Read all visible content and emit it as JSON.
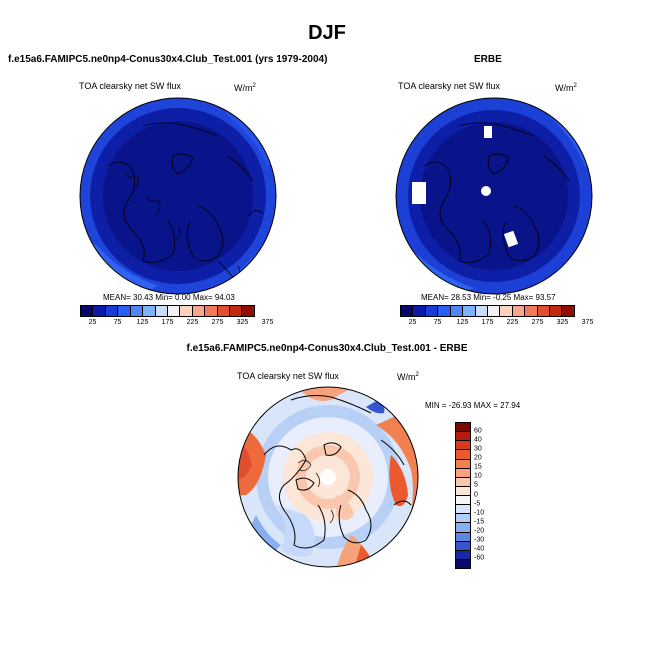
{
  "title": "DJF",
  "panels": [
    {
      "title": "f.e15a6.FAMIPC5.ne0np4-Conus30x4.Club_Test.001 (yrs 1979-2004)",
      "label": "TOA clearsky net SW flux",
      "units_base": "W/m",
      "units_exp": "2",
      "stats": "MEAN=  30.43   Min=   0.00   Max=  94.03"
    },
    {
      "title": "ERBE",
      "label": "TOA clearsky net SW flux",
      "units_base": "W/m",
      "units_exp": "2",
      "stats": "MEAN=  28.53   Min=  -0.25   Max=  93.57"
    }
  ],
  "top_colorbar": {
    "labels": [
      "25",
      "75",
      "125",
      "175",
      "225",
      "275",
      "325",
      "375"
    ],
    "colors": [
      "#08086b",
      "#0c1aa8",
      "#1a3cd6",
      "#2d5cf0",
      "#4f86f7",
      "#7fb0fb",
      "#c8dcfb",
      "#f3f3f3",
      "#fbd3c0",
      "#f8a68c",
      "#f07a5a",
      "#e0502e",
      "#c22b12",
      "#8e1005"
    ]
  },
  "diff_panel": {
    "title": "f.e15a6.FAMIPC5.ne0np4-Conus30x4.Club_Test.001 - ERBE",
    "label": "TOA clearsky net SW flux",
    "units_base": "W/m",
    "units_exp": "2",
    "stats": "MIN = -26.93 MAX =  27.94"
  },
  "diff_colorbar": {
    "labels": [
      "60",
      "40",
      "30",
      "20",
      "15",
      "10",
      "5",
      "0",
      "-5",
      "-10",
      "-15",
      "-20",
      "-30",
      "-40",
      "-60"
    ],
    "colors": [
      "#7a0a04",
      "#b81a0e",
      "#d63a1c",
      "#ea5a2e",
      "#f28050",
      "#f6a37c",
      "#fac7ae",
      "#fbe6d8",
      "#f5f5f5",
      "#d8e6fa",
      "#b3cdf6",
      "#8aaff0",
      "#5f86e4",
      "#3656cf",
      "#1628a4",
      "#080a6a"
    ]
  }
}
